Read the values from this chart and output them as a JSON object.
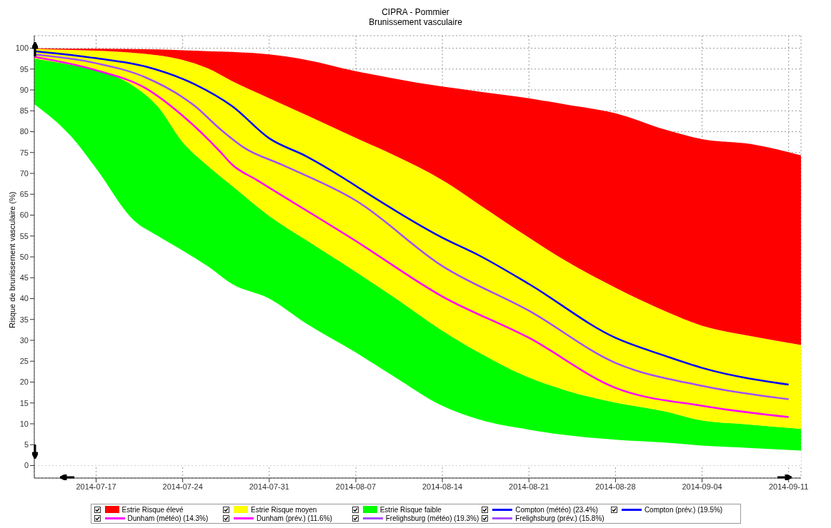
{
  "chart_data": {
    "type": "area",
    "title": "CIPRA - Pommier",
    "subtitle": "Brunissement vasculaire",
    "ylabel": "Risque de brunissement vasculaire (%)",
    "xlim": [
      "2014-07-12",
      "2014-09-12"
    ],
    "xticks": [
      "2014-07-17",
      "2014-07-24",
      "2014-07-31",
      "2014-08-07",
      "2014-08-14",
      "2014-08-21",
      "2014-08-28",
      "2014-09-04",
      "2014-09-11"
    ],
    "ylim": [
      -3,
      103
    ],
    "yticks": [
      0,
      5,
      10,
      15,
      20,
      25,
      30,
      35,
      40,
      45,
      50,
      55,
      60,
      65,
      70,
      75,
      80,
      85,
      90,
      95,
      100
    ],
    "grid": true,
    "legend": "bottom",
    "stacked": true,
    "series": [
      {
        "color": "#ffffff",
        "x": [
          "2014-07-12",
          "2014-07-15",
          "2014-07-17",
          "2014-07-20",
          "2014-07-22",
          "2014-07-24",
          "2014-07-26",
          "2014-07-28",
          "2014-07-31",
          "2014-08-03",
          "2014-08-07",
          "2014-08-10",
          "2014-08-14",
          "2014-08-17",
          "2014-08-21",
          "2014-08-24",
          "2014-08-28",
          "2014-09-01",
          "2014-09-04",
          "2014-09-08",
          "2014-09-12"
        ],
        "values": [
          86.6,
          78.8,
          71.2,
          58.9,
          55.0,
          51.5,
          47.8,
          43.5,
          40.0,
          34.0,
          27.1,
          21.5,
          14.3,
          11.0,
          8.6,
          7.3,
          6.2,
          5.5,
          4.8,
          4.2,
          3.6
        ]
      },
      {
        "name": "Estrie Risque faible",
        "color": "#00ff00",
        "x": [
          "2014-07-12",
          "2014-07-15",
          "2014-07-17",
          "2014-07-20",
          "2014-07-22",
          "2014-07-24",
          "2014-07-26",
          "2014-07-28",
          "2014-07-31",
          "2014-08-03",
          "2014-08-07",
          "2014-08-10",
          "2014-08-14",
          "2014-08-17",
          "2014-08-21",
          "2014-08-24",
          "2014-08-28",
          "2014-09-01",
          "2014-09-04",
          "2014-09-08",
          "2014-09-12"
        ],
        "values": [
          10.9,
          17.2,
          23.5,
          32.1,
          31.0,
          26.0,
          24.1,
          23.5,
          19.8,
          20.0,
          19.3,
          19.0,
          18.0,
          16.0,
          12.5,
          10.7,
          8.9,
          7.5,
          6.0,
          5.6,
          5.2
        ]
      },
      {
        "name": "Estrie Risque moyen",
        "color": "#ffff00",
        "x": [
          "2014-07-12",
          "2014-07-15",
          "2014-07-17",
          "2014-07-20",
          "2014-07-22",
          "2014-07-24",
          "2014-07-26",
          "2014-07-28",
          "2014-07-31",
          "2014-08-03",
          "2014-08-07",
          "2014-08-10",
          "2014-08-14",
          "2014-08-17",
          "2014-08-21",
          "2014-08-24",
          "2014-08-28",
          "2014-09-01",
          "2014-09-04",
          "2014-09-08",
          "2014-09-12"
        ],
        "values": [
          2.4,
          3.6,
          4.7,
          7.9,
          12.3,
          19.7,
          23.3,
          25.1,
          28.2,
          30.0,
          32.1,
          34.0,
          36.1,
          35.5,
          33.5,
          31.0,
          27.5,
          24.0,
          22.7,
          21.2,
          20.1
        ]
      },
      {
        "name": "Estrie Risque élevé",
        "color": "#ff0000",
        "x": [
          "2014-07-12",
          "2014-07-15",
          "2014-07-17",
          "2014-07-20",
          "2014-07-22",
          "2014-07-24",
          "2014-07-26",
          "2014-07-28",
          "2014-07-31",
          "2014-08-03",
          "2014-08-07",
          "2014-08-10",
          "2014-08-14",
          "2014-08-17",
          "2014-08-21",
          "2014-08-24",
          "2014-08-28",
          "2014-09-01",
          "2014-09-04",
          "2014-09-08",
          "2014-09-12"
        ],
        "values": [
          0.1,
          0.3,
          0.5,
          0.9,
          1.4,
          2.3,
          4.1,
          7.0,
          10.5,
          13.2,
          16.0,
          18.3,
          22.4,
          27.1,
          33.4,
          37.5,
          41.8,
          43.5,
          44.7,
          46.0,
          45.4
        ]
      },
      {
        "name": "Compton (météo) (23.4%)",
        "type": "line",
        "color": "#0000ff"
      },
      {
        "name": "Compton (prév.) (19.5%)",
        "type": "line",
        "color": "#0000ff",
        "x": [
          "2014-07-12",
          "2014-07-17",
          "2014-07-21",
          "2014-07-25",
          "2014-07-28",
          "2014-07-31",
          "2014-08-03",
          "2014-08-06",
          "2014-08-07",
          "2014-08-14",
          "2014-08-17",
          "2014-08-21",
          "2014-08-28",
          "2014-09-01",
          "2014-09-04",
          "2014-09-11"
        ],
        "values": [
          99.3,
          97.6,
          95.6,
          91.3,
          86.1,
          78.4,
          74.1,
          68.9,
          67,
          54.6,
          50.3,
          43.5,
          30.6,
          26.3,
          23.4,
          19.4
        ]
      },
      {
        "name": "Dunham (météo) (14.3%)",
        "type": "line",
        "color": "#ff00ff"
      },
      {
        "name": "Dunham (prév.) (11.6%)",
        "type": "line",
        "color": "#ff00ff",
        "x": [
          "2014-07-12",
          "2014-07-17",
          "2014-07-21",
          "2014-07-24",
          "2014-07-27",
          "2014-07-28",
          "2014-07-30",
          "2014-08-07",
          "2014-08-14",
          "2014-08-21",
          "2014-08-28",
          "2014-09-04",
          "2014-09-11"
        ],
        "values": [
          97.9,
          94.7,
          90.4,
          83.8,
          75.3,
          72.1,
          68.4,
          53.8,
          40.5,
          30.6,
          18.6,
          14.3,
          11.6
        ]
      },
      {
        "name": "Frelighsburg (météo) (19.3%)",
        "type": "line",
        "color": "#a64dff"
      },
      {
        "name": "Frelighsburg (prév.) (15.8%)",
        "type": "line",
        "color": "#a64dff",
        "x": [
          "2014-07-12",
          "2014-07-17",
          "2014-07-21",
          "2014-07-25",
          "2014-07-27",
          "2014-07-29",
          "2014-08-01",
          "2014-08-07",
          "2014-08-14",
          "2014-08-21",
          "2014-08-28",
          "2014-09-04",
          "2014-09-11"
        ],
        "values": [
          98.5,
          96.4,
          93,
          86.1,
          80.7,
          76.1,
          72.1,
          63.5,
          47.8,
          37.1,
          24.6,
          19.1,
          15.9
        ]
      }
    ]
  }
}
